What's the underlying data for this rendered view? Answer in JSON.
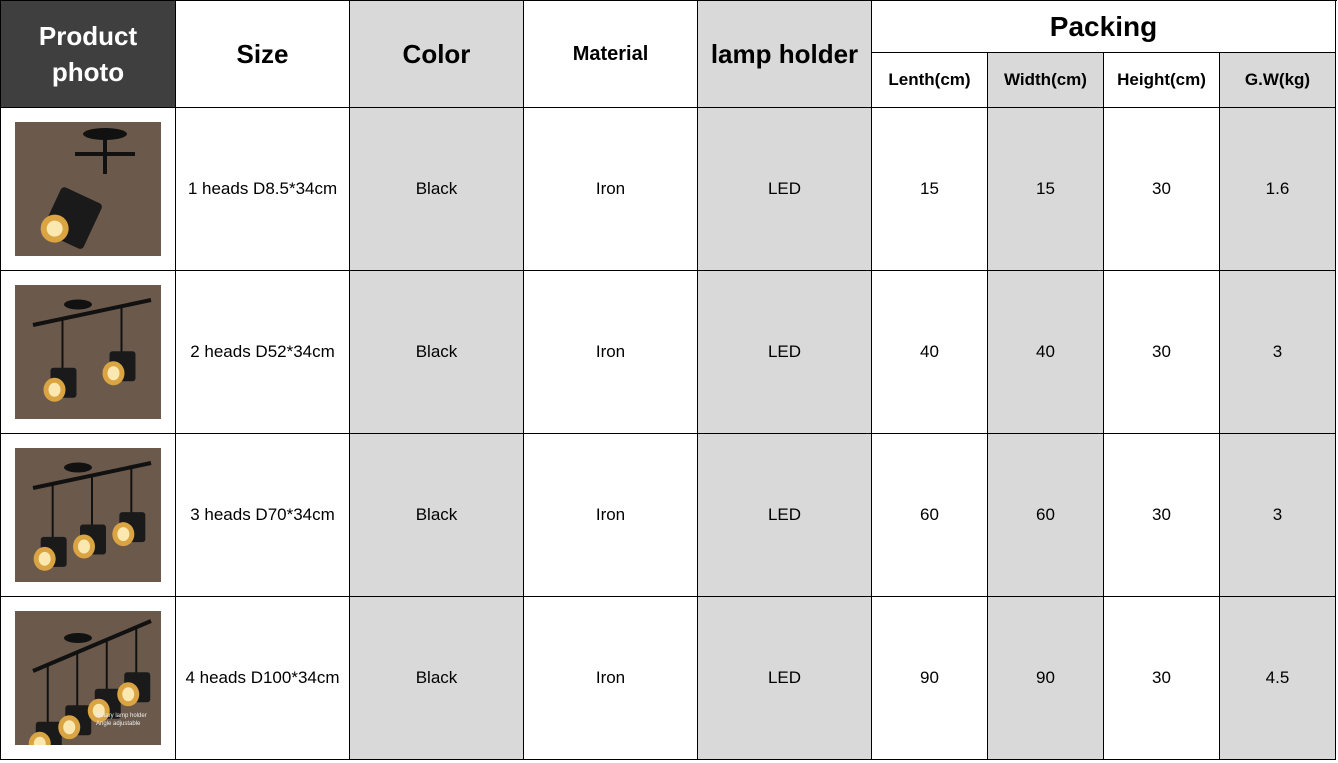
{
  "headers": {
    "product_photo": "Product photo",
    "size": "Size",
    "color": "Color",
    "material": "Material",
    "lamp_holder": "lamp holder",
    "packing": "Packing",
    "packing_sub": [
      "Lenth(cm)",
      "Width(cm)",
      "Height(cm)",
      "G.W(kg)"
    ]
  },
  "rows": [
    {
      "heads": 1,
      "size": "1 heads D8.5*34cm",
      "color": "Black",
      "material": "Iron",
      "lamp_holder": "LED",
      "length": "15",
      "width": "15",
      "height": "30",
      "gw": "1.6"
    },
    {
      "heads": 2,
      "size": "2 heads D52*34cm",
      "color": "Black",
      "material": "Iron",
      "lamp_holder": "LED",
      "length": "40",
      "width": "40",
      "height": "30",
      "gw": "3"
    },
    {
      "heads": 3,
      "size": "3 heads D70*34cm",
      "color": "Black",
      "material": "Iron",
      "lamp_holder": "LED",
      "length": "60",
      "width": "60",
      "height": "30",
      "gw": "3"
    },
    {
      "heads": 4,
      "size": "4 heads D100*34cm",
      "color": "Black",
      "material": "Iron",
      "lamp_holder": "LED",
      "length": "90",
      "width": "90",
      "height": "30",
      "gw": "4.5",
      "photo_caption": [
        "Rotary lamp holder",
        "Angle adjustable"
      ]
    }
  ],
  "colors": {
    "header_dark": "#3f3f3f",
    "shaded": "#d9d9d9",
    "photo_bg": "#6b5a4c"
  }
}
